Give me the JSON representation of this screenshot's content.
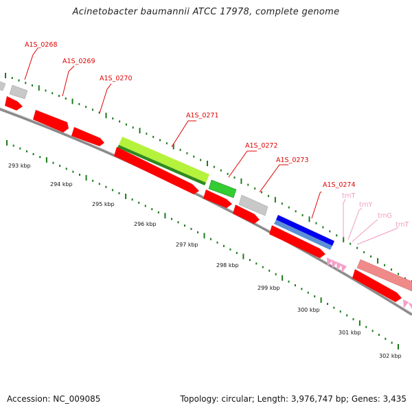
{
  "header": {
    "title": "Acinetobacter baumannii ATCC 17978, complete genome"
  },
  "footer": {
    "accession": "Accession: NC_009085",
    "summary": "Topology: circular; Length: 3,976,747 bp; Genes: 3,435"
  },
  "colors": {
    "cds": "#ff0000",
    "cds_dark": "#b30000",
    "gray_feature": "#c8c8c8",
    "green_light": "#b5f23c",
    "green_dark": "#2f8a1f",
    "green_mid": "#33cc33",
    "blue": "#0000ee",
    "blue_light": "#5b8fd6",
    "pink": "#f4a0c8",
    "salmon": "#f08a8a",
    "tick": "#1b7a1b",
    "label_red": "#e00000",
    "label_pink": "#f09ac2"
  },
  "axis": {
    "kbp_labels": [
      "293 kbp",
      "294 kbp",
      "295 kbp",
      "296 kbp",
      "297 kbp",
      "298 kbp",
      "299 kbp",
      "300 kbp",
      "301 kbp",
      "302 kbp"
    ]
  },
  "genes": {
    "A1S_0268": "A1S_0268",
    "A1S_0269": "A1S_0269",
    "A1S_0270": "A1S_0270",
    "A1S_0271": "A1S_0271",
    "A1S_0272": "A1S_0272",
    "A1S_0273": "A1S_0273",
    "A1S_0274": "A1S_0274",
    "trnT_1": "trnT",
    "trnY": "trnY",
    "trnG": "trnG",
    "trnT_2": "trnT"
  }
}
